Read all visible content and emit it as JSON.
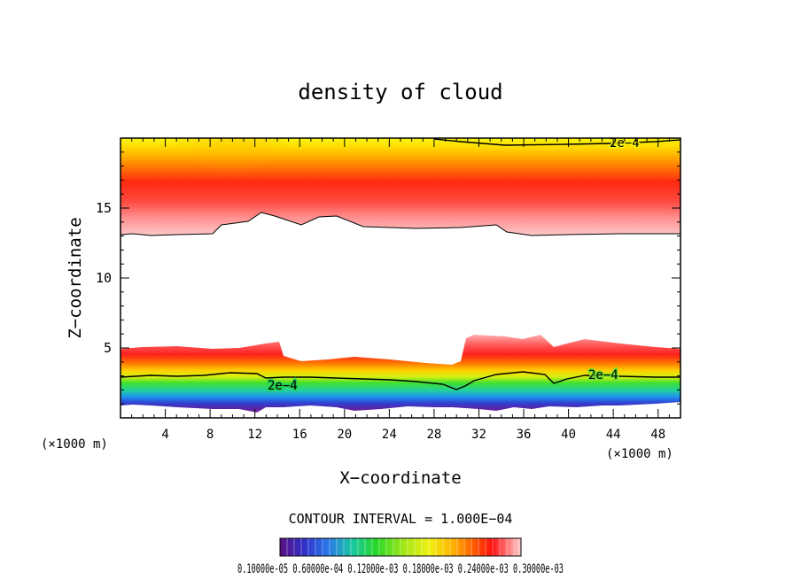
{
  "chart_data": {
    "type": "contour",
    "title": "density of cloud",
    "xlabel": "X−coordinate",
    "ylabel": "Z−coordinate",
    "x_unit": "(×1000 m)",
    "y_unit": "(×1000 m)",
    "xlim": [
      0,
      50
    ],
    "ylim": [
      0,
      20
    ],
    "x_ticks": [
      4,
      8,
      12,
      16,
      20,
      24,
      28,
      32,
      36,
      40,
      44,
      48
    ],
    "x_tick_labels": [
      "4",
      "8",
      "12",
      "16",
      "20",
      "24",
      "28",
      "32",
      "36",
      "40",
      "44",
      "48"
    ],
    "y_ticks": [
      5,
      10,
      15
    ],
    "y_tick_labels": [
      "5",
      "10",
      "15"
    ],
    "contour_interval_text": "CONTOUR INTERVAL = 1.000E−04",
    "contour_labels": [
      "2e−4",
      "2e−4",
      "2e−4"
    ],
    "colorbar_labels_text": "0.10000e-05 0.60000e-04 0.12000e-03 0.18000e-03 0.24000e-03 0.30000e-03",
    "colorbar_range": [
      1e-06,
      0.00033
    ],
    "colormap": [
      "#5a1080",
      "#3030c8",
      "#2a78e8",
      "#18c8a0",
      "#28d828",
      "#a8e818",
      "#f0f010",
      "#ffb000",
      "#ff6000",
      "#ff1010",
      "#ff8080",
      "#ffd0d0"
    ]
  }
}
